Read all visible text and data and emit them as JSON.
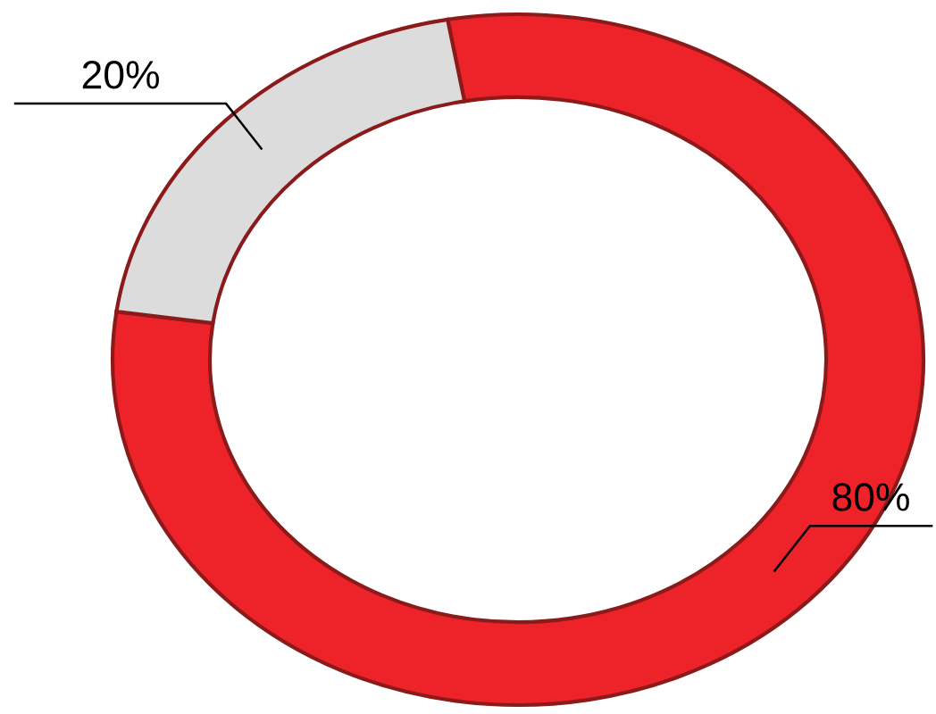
{
  "chart_data": {
    "type": "donut",
    "categories": [
      null,
      null
    ],
    "values": [
      80,
      20
    ],
    "colors": [
      "#ee2229",
      "#dcdcdc"
    ],
    "value_labels": [
      "80%",
      "20%"
    ]
  }
}
